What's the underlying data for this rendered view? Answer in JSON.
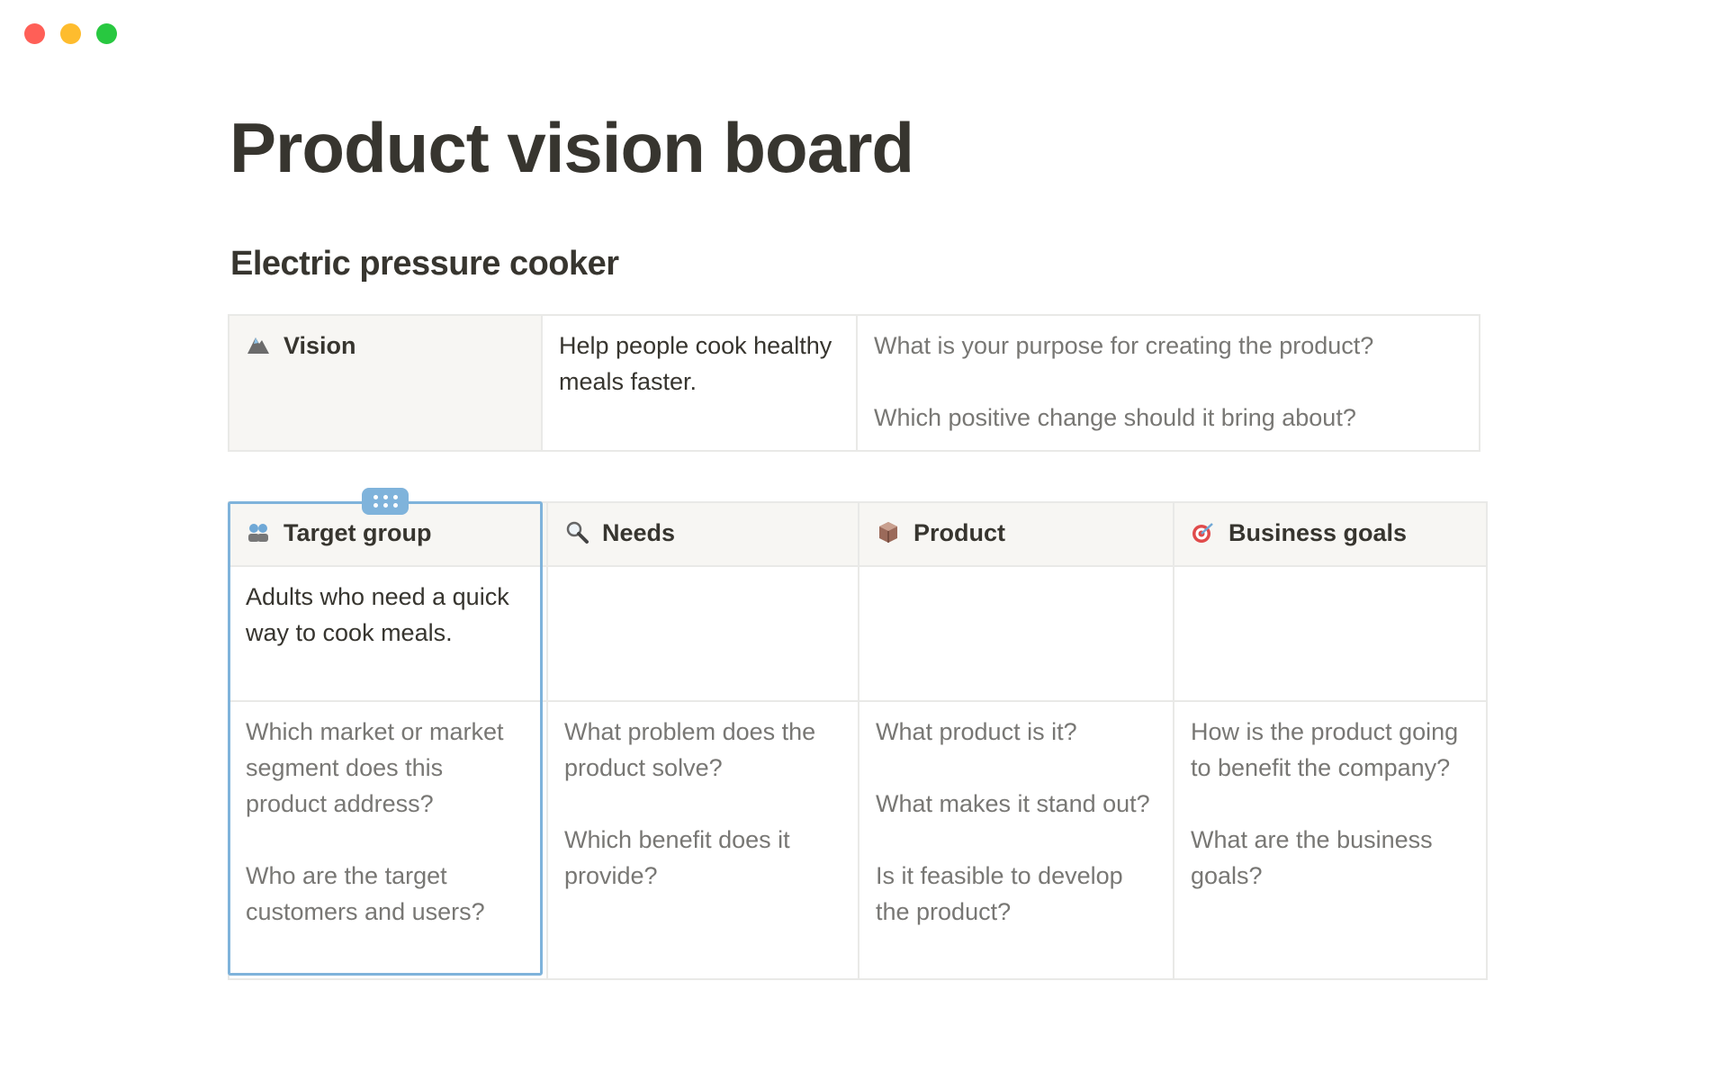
{
  "window": {
    "controls": [
      {
        "name": "close",
        "color": "#ff5f57"
      },
      {
        "name": "minimize",
        "color": "#febc2e"
      },
      {
        "name": "zoom",
        "color": "#28c840"
      }
    ]
  },
  "page": {
    "title": "Product vision board",
    "subtitle": "Electric pressure cooker"
  },
  "vision": {
    "label": "Vision",
    "icon": "mountain-icon",
    "statement": "Help people cook healthy meals faster.",
    "prompts": [
      "What is your purpose for creating the product?",
      "Which positive change should it bring about?"
    ]
  },
  "board": {
    "columns": [
      {
        "label": "Target group",
        "icon": "people-icon",
        "content": "Adults who need a quick way to cook meals.",
        "prompts": [
          "Which market or market segment does this product address?",
          "Who are the target customers and users?"
        ]
      },
      {
        "label": "Needs",
        "icon": "magnifier-icon",
        "content": "",
        "prompts": [
          "What problem does the product solve?",
          "Which benefit does it provide?"
        ]
      },
      {
        "label": "Product",
        "icon": "package-icon",
        "content": "",
        "prompts": [
          "What product is it?",
          "What makes it stand out?",
          "Is it feasible to develop the product?"
        ]
      },
      {
        "label": "Business goals",
        "icon": "target-icon",
        "content": "",
        "prompts": [
          "How is the product going to benefit the company?",
          "What are the business goals?"
        ]
      }
    ]
  },
  "colors": {
    "text": "#37352f",
    "muted": "#787774",
    "header_bg": "#f7f6f3",
    "border": "#e9e9e7",
    "selection": "#7fb3db"
  }
}
